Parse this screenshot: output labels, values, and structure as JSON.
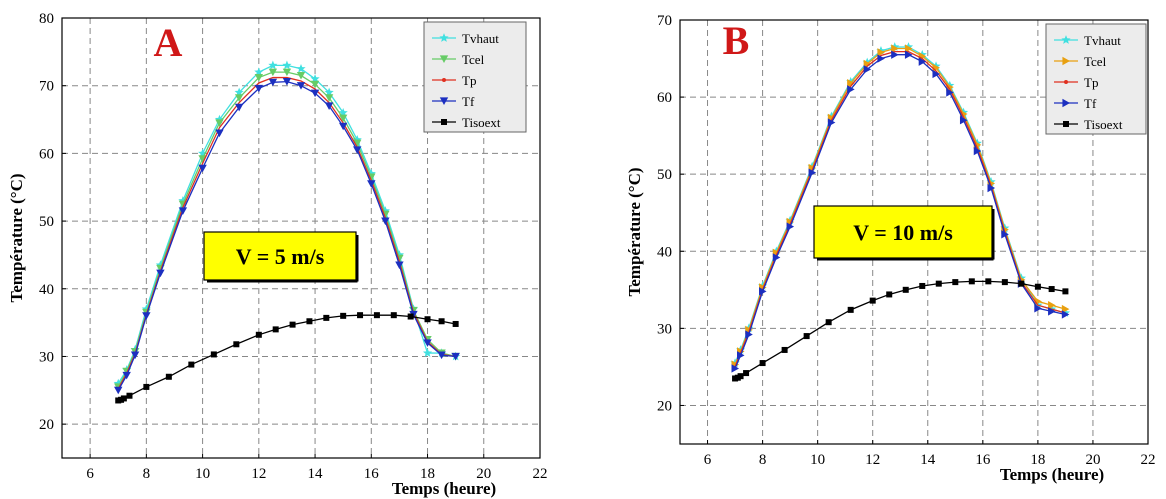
{
  "chart_data": [
    {
      "type": "line",
      "panel_label": "A",
      "annotation": "V = 5 m/s",
      "xlabel": "Temps (heure)",
      "ylabel": "Température (°C)",
      "xlim": [
        5,
        22
      ],
      "ylim": [
        15,
        80
      ],
      "xticks": [
        6,
        8,
        10,
        12,
        14,
        16,
        18,
        20,
        22
      ],
      "yticks": [
        20,
        30,
        40,
        50,
        60,
        70,
        80
      ],
      "grid": true,
      "legend_position": "top-right",
      "series": [
        {
          "name": "Tvhaut",
          "color": "#40e0e0",
          "marker": "star",
          "x": [
            7,
            7.3,
            7.6,
            8,
            8.5,
            9.3,
            10,
            10.6,
            11.3,
            12,
            12.5,
            13,
            13.5,
            14,
            14.5,
            15,
            15.5,
            16,
            16.5,
            17,
            17.5,
            18,
            18.5,
            19
          ],
          "y": [
            26,
            28,
            31,
            37,
            43.5,
            53,
            60,
            65,
            69,
            72,
            73,
            73,
            72.5,
            71,
            69,
            66,
            62,
            57,
            51.5,
            45,
            37,
            30.5,
            30.5,
            30
          ]
        },
        {
          "name": "Tcel",
          "color": "#66cc66",
          "marker": "triangle-down",
          "x": [
            7,
            7.3,
            7.6,
            8,
            8.5,
            9.3,
            10,
            10.6,
            11.3,
            12,
            12.5,
            13,
            13.5,
            14,
            14.5,
            15,
            15.5,
            16,
            16.5,
            17,
            17.5,
            18,
            18.5,
            19
          ],
          "y": [
            25.5,
            27.8,
            30.7,
            36.5,
            43,
            52.5,
            59.2,
            64.5,
            68.2,
            71.2,
            72,
            72,
            71.5,
            70.2,
            68.2,
            65.2,
            61.5,
            56.5,
            51,
            44.5,
            36.8,
            32.5,
            30.5,
            30
          ]
        },
        {
          "name": "Tp",
          "color": "#e03020",
          "marker": "line",
          "x": [
            7,
            7.3,
            7.6,
            8,
            8.5,
            9.3,
            10,
            10.6,
            11.3,
            12,
            12.5,
            13,
            13.5,
            14,
            14.5,
            15,
            15.5,
            16,
            16.5,
            17,
            17.5,
            18,
            18.5,
            19
          ],
          "y": [
            25.2,
            27.5,
            30.4,
            36.2,
            42.6,
            52,
            58.5,
            63.8,
            67.5,
            70.4,
            71.2,
            71.2,
            70.7,
            69.5,
            67.5,
            64.5,
            60.9,
            56,
            50.5,
            44,
            36.5,
            32.2,
            30.3,
            30
          ]
        },
        {
          "name": "Tf",
          "color": "#1c2fc0",
          "marker": "triangle-down",
          "x": [
            7,
            7.3,
            7.6,
            8,
            8.5,
            9.3,
            10,
            10.6,
            11.3,
            12,
            12.5,
            13,
            13.5,
            14,
            14.5,
            15,
            15.5,
            16,
            16.5,
            17,
            17.5,
            18,
            18.5,
            19
          ],
          "y": [
            25,
            27.2,
            30.2,
            36,
            42.3,
            51.5,
            57.8,
            63,
            66.8,
            69.6,
            70.5,
            70.6,
            70,
            68.9,
            67,
            64,
            60.5,
            55.5,
            50,
            43.5,
            36.2,
            32,
            30.2,
            30
          ]
        },
        {
          "name": "Tisoext",
          "color": "#000000",
          "marker": "square",
          "x": [
            7,
            7.1,
            7.2,
            7.4,
            8,
            8.8,
            9.6,
            10.4,
            11.2,
            12,
            12.6,
            13.2,
            13.8,
            14.4,
            15,
            15.6,
            16.2,
            16.8,
            17.4,
            18,
            18.5,
            19
          ],
          "y": [
            23.5,
            23.6,
            23.8,
            24.2,
            25.5,
            27,
            28.8,
            30.3,
            31.8,
            33.2,
            34,
            34.7,
            35.2,
            35.7,
            36,
            36.1,
            36.1,
            36.1,
            35.9,
            35.5,
            35.2,
            34.8
          ]
        }
      ]
    },
    {
      "type": "line",
      "panel_label": "B",
      "annotation": "V = 10 m/s",
      "xlabel": "Temps (heure)",
      "ylabel": "Température (°C)",
      "xlim": [
        5,
        22
      ],
      "ylim": [
        15,
        70
      ],
      "xticks": [
        6,
        8,
        10,
        12,
        14,
        16,
        18,
        20,
        22
      ],
      "yticks": [
        20,
        30,
        40,
        50,
        60,
        70
      ],
      "grid": true,
      "legend_position": "top-right",
      "series": [
        {
          "name": "Tvhaut",
          "color": "#40e0e0",
          "marker": "star",
          "x": [
            7,
            7.2,
            7.5,
            8,
            8.5,
            9,
            9.8,
            10.5,
            11.2,
            11.8,
            12.3,
            12.8,
            13.3,
            13.8,
            14.3,
            14.8,
            15.3,
            15.8,
            16.3,
            16.8,
            17.4,
            18,
            18.5,
            19
          ],
          "y": [
            25.5,
            27.2,
            30,
            35.5,
            40,
            44,
            51,
            57.5,
            62,
            64.5,
            66,
            66.5,
            66.5,
            65.5,
            64,
            61.5,
            58,
            54,
            49,
            43,
            36.5,
            33,
            32.5,
            32
          ]
        },
        {
          "name": "Tcel",
          "color": "#e8a010",
          "marker": "triangle-right",
          "x": [
            7,
            7.2,
            7.5,
            8,
            8.5,
            9,
            9.8,
            10.5,
            11.2,
            11.8,
            12.3,
            12.8,
            13.3,
            13.8,
            14.3,
            14.8,
            15.3,
            15.8,
            16.3,
            16.8,
            17.4,
            18,
            18.5,
            19
          ],
          "y": [
            25.3,
            27,
            29.8,
            35.3,
            39.8,
            43.8,
            50.8,
            57.3,
            61.8,
            64.3,
            65.8,
            66.3,
            66.3,
            65.3,
            63.8,
            61.3,
            57.8,
            53.8,
            48.8,
            42.8,
            36.3,
            33.5,
            33,
            32.5
          ]
        },
        {
          "name": "Tp",
          "color": "#e03020",
          "marker": "line",
          "x": [
            7,
            7.2,
            7.5,
            8,
            8.5,
            9,
            9.8,
            10.5,
            11.2,
            11.8,
            12.3,
            12.8,
            13.3,
            13.8,
            14.3,
            14.8,
            15.3,
            15.8,
            16.3,
            16.8,
            17.4,
            18,
            18.5,
            19
          ],
          "y": [
            25,
            26.8,
            29.5,
            35,
            39.5,
            43.5,
            50.5,
            57,
            61.4,
            64,
            65.4,
            65.9,
            65.9,
            65,
            63.4,
            61,
            57.4,
            53.4,
            48.5,
            42.5,
            36,
            33,
            32.5,
            32
          ]
        },
        {
          "name": "Tf",
          "color": "#1c2fc0",
          "marker": "triangle-right",
          "x": [
            7,
            7.2,
            7.5,
            8,
            8.5,
            9,
            9.8,
            10.5,
            11.2,
            11.8,
            12.3,
            12.8,
            13.3,
            13.8,
            14.3,
            14.8,
            15.3,
            15.8,
            16.3,
            16.8,
            17.4,
            18,
            18.5,
            19
          ],
          "y": [
            24.8,
            26.5,
            29.2,
            34.8,
            39.2,
            43.2,
            50.2,
            56.7,
            61,
            63.6,
            65,
            65.5,
            65.5,
            64.6,
            63,
            60.6,
            57,
            53,
            48.2,
            42.2,
            35.8,
            32.6,
            32.2,
            31.8
          ]
        },
        {
          "name": "Tisoext",
          "color": "#000000",
          "marker": "square",
          "x": [
            7,
            7.1,
            7.2,
            7.4,
            8,
            8.8,
            9.6,
            10.4,
            11.2,
            12,
            12.6,
            13.2,
            13.8,
            14.4,
            15,
            15.6,
            16.2,
            16.8,
            17.4,
            18,
            18.5,
            19
          ],
          "y": [
            23.5,
            23.6,
            23.8,
            24.2,
            25.5,
            27.2,
            29,
            30.8,
            32.4,
            33.6,
            34.4,
            35,
            35.5,
            35.8,
            36,
            36.1,
            36.1,
            36,
            35.8,
            35.4,
            35.1,
            34.8
          ]
        }
      ]
    }
  ]
}
